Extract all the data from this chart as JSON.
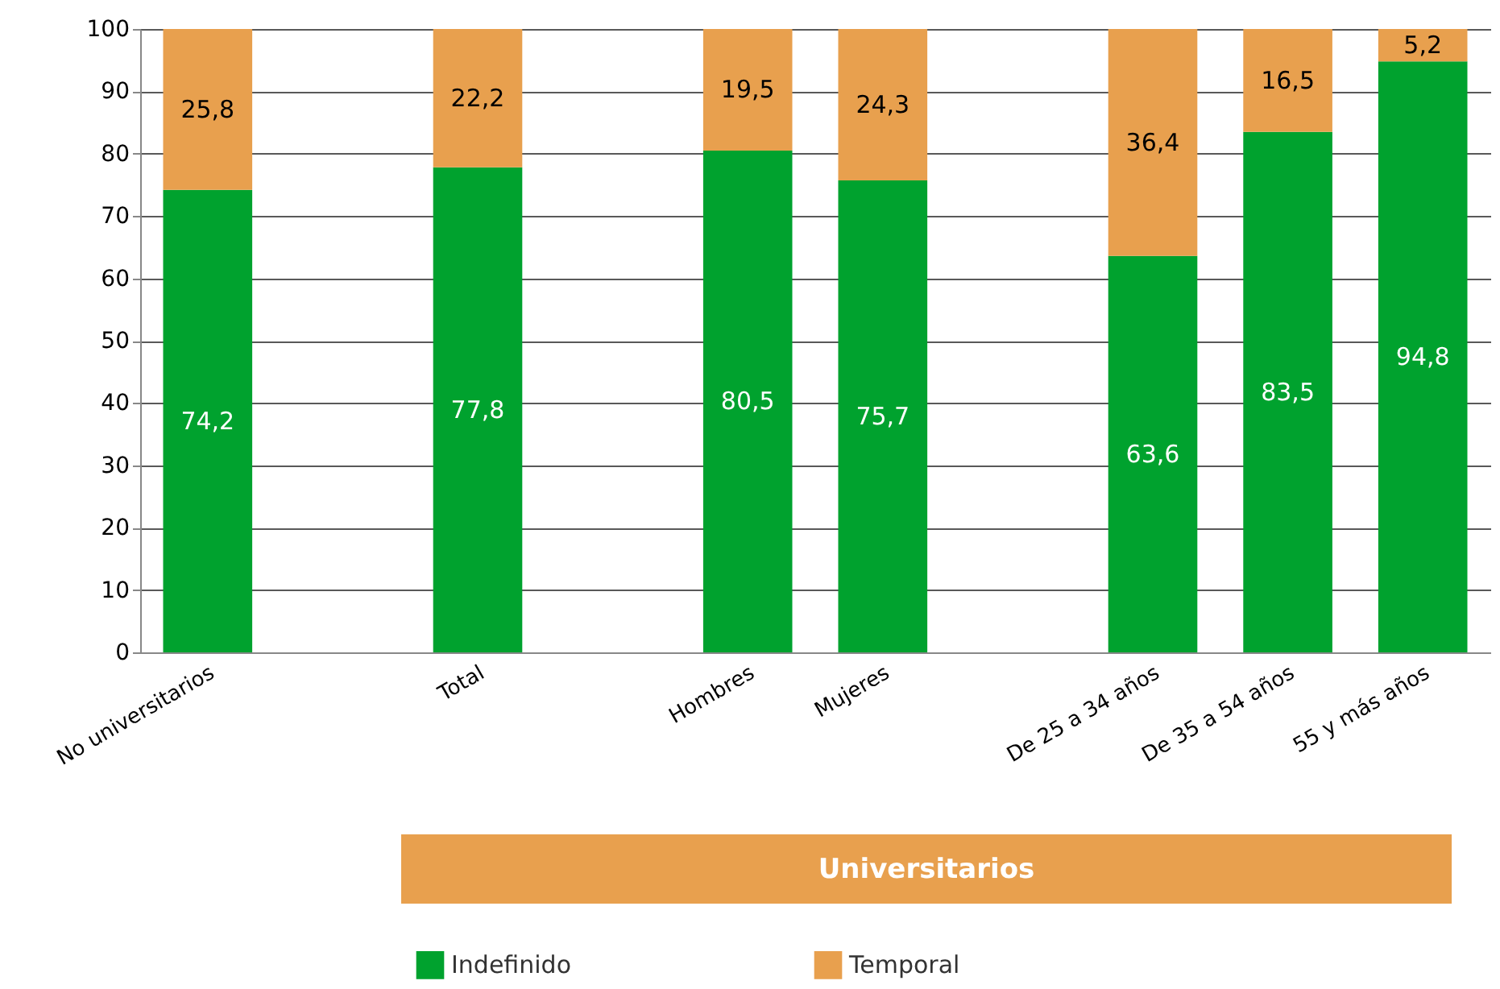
{
  "chart_data": {
    "type": "bar",
    "stacked": true,
    "grid": "y",
    "legend": "bottom",
    "categories": [
      "No universitarios",
      null,
      "Total",
      null,
      "Hombres",
      "Mujeres",
      null,
      "De 25 a 34 años",
      "De 35 a 54 años",
      "55 y más años"
    ],
    "series": [
      {
        "name": "Indefinido",
        "color": "#00a22e",
        "values": [
          74.2,
          null,
          77.8,
          null,
          80.5,
          75.7,
          null,
          63.6,
          83.5,
          94.8
        ],
        "value_labels": [
          "74,2",
          null,
          "77,8",
          null,
          "80,5",
          "75,7",
          null,
          "63,6",
          "83,5",
          "94,8"
        ]
      },
      {
        "name": "Temporal",
        "color": "#e8a04e",
        "values": [
          25.8,
          null,
          22.2,
          null,
          19.5,
          24.3,
          null,
          36.4,
          16.5,
          5.2
        ],
        "value_labels": [
          "25,8",
          null,
          "22,2",
          null,
          "19,5",
          "24,3",
          null,
          "36,4",
          "16,5",
          "5,2"
        ]
      }
    ],
    "ylim": [
      0,
      100
    ],
    "yticks": [
      0,
      10,
      20,
      30,
      40,
      50,
      60,
      70,
      80,
      90,
      100
    ],
    "annotations": [
      "Universitarios"
    ]
  }
}
